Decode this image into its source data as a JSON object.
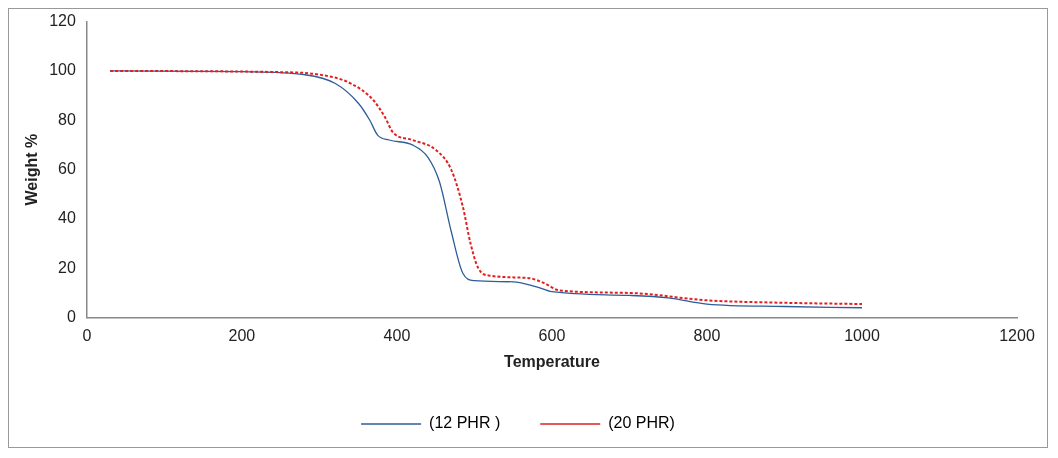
{
  "chart_data": {
    "type": "line",
    "xlabel": "Temperature",
    "ylabel": "Weight %",
    "xlim": [
      0,
      1200
    ],
    "xticks": [
      0,
      200,
      400,
      600,
      800,
      1000,
      1200
    ],
    "ylim": [
      0,
      120
    ],
    "yticks": [
      0,
      20,
      40,
      60,
      80,
      100,
      120
    ],
    "grid": false,
    "legend": "bottom",
    "marker": "none",
    "series": [
      {
        "name": "(12 PHR )",
        "color": "#2e5d9a",
        "line_style": "solid",
        "x": [
          30,
          200,
          280,
          320,
          350,
          365,
          375,
          390,
          420,
          440,
          455,
          470,
          485,
          500,
          550,
          580,
          600,
          700,
          750,
          800,
          900,
          1000
        ],
        "values": [
          100,
          99.7,
          98.5,
          95,
          87,
          80,
          74,
          72,
          70,
          65,
          55,
          35,
          18,
          15,
          14.5,
          12.5,
          10.5,
          9,
          8,
          5.5,
          4.5,
          4
        ]
      },
      {
        "name": "(20 PHR)",
        "color": "#e02020",
        "line_style": "dotted",
        "x": [
          30,
          250,
          300,
          340,
          370,
          385,
          395,
          420,
          450,
          470,
          485,
          495,
          505,
          520,
          570,
          590,
          610,
          700,
          800,
          900,
          1000
        ],
        "values": [
          100,
          99.5,
          98.5,
          95,
          88,
          81,
          75,
          72,
          68,
          60,
          45,
          30,
          20,
          17,
          16,
          14,
          11,
          10,
          7,
          6,
          5.5
        ]
      }
    ]
  }
}
